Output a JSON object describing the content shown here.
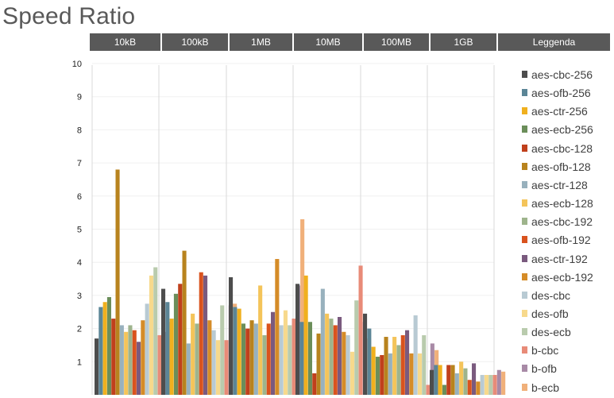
{
  "chart_data": {
    "type": "bar",
    "title": "Speed Ratio",
    "categories": [
      "10kB",
      "100kB",
      "1MB",
      "10MB",
      "100MB",
      "1GB"
    ],
    "legend_header": "Leggenda",
    "legend_position": "right",
    "ylim": [
      0,
      10
    ],
    "y_ticks": [
      "1",
      "2",
      "3",
      "4",
      "5",
      "6",
      "7",
      "8",
      "9",
      "10"
    ],
    "grid": true,
    "series": [
      {
        "name": "aes-cbc-256",
        "color": "#4d4d4d",
        "values": [
          1.7,
          3.2,
          3.55,
          3.35,
          2.45,
          0.75
        ]
      },
      {
        "name": "aes-ofb-256",
        "color": "#5b8596",
        "values": [
          2.65,
          2.8,
          2.65,
          2.2,
          2.0,
          0.9
        ]
      },
      {
        "name": "aes-ctr-256",
        "color": "#f0b01e",
        "values": [
          2.8,
          2.3,
          2.6,
          3.6,
          1.45,
          0.9
        ]
      },
      {
        "name": "aes-ecb-256",
        "color": "#6b8e5a",
        "values": [
          2.95,
          3.05,
          2.15,
          2.2,
          1.15,
          0.3
        ]
      },
      {
        "name": "aes-cbc-128",
        "color": "#c0401c",
        "values": [
          2.3,
          3.35,
          2.0,
          0.65,
          1.2,
          0.9
        ]
      },
      {
        "name": "aes-ofb-128",
        "color": "#b8831e",
        "values": [
          6.8,
          4.35,
          2.25,
          1.85,
          1.75,
          0.9
        ]
      },
      {
        "name": "aes-ctr-128",
        "color": "#98b1bd",
        "values": [
          2.1,
          1.55,
          2.15,
          3.2,
          1.25,
          0.65
        ]
      },
      {
        "name": "aes-ecb-128",
        "color": "#f4c45a",
        "values": [
          1.9,
          2.45,
          3.3,
          2.45,
          1.75,
          1.0
        ]
      },
      {
        "name": "aes-cbc-192",
        "color": "#9eb48c",
        "values": [
          2.1,
          2.15,
          1.8,
          2.3,
          1.5,
          0.8
        ]
      },
      {
        "name": "aes-ofb-192",
        "color": "#d9531e",
        "values": [
          1.95,
          3.7,
          2.15,
          2.1,
          1.8,
          0.45
        ]
      },
      {
        "name": "aes-ctr-192",
        "color": "#7a5a7e",
        "values": [
          1.6,
          3.6,
          2.5,
          2.35,
          1.95,
          0.95
        ]
      },
      {
        "name": "aes-ecb-192",
        "color": "#d58c28",
        "values": [
          2.25,
          2.25,
          4.1,
          1.9,
          1.25,
          0.4
        ]
      },
      {
        "name": "des-cbc",
        "color": "#b8cad3",
        "values": [
          2.75,
          1.95,
          2.1,
          1.8,
          2.4,
          0.6
        ]
      },
      {
        "name": "des-ofb",
        "color": "#f7d98c",
        "values": [
          3.6,
          1.65,
          2.55,
          1.3,
          1.25,
          0.6
        ]
      },
      {
        "name": "des-ecb",
        "color": "#b9cbad",
        "values": [
          3.85,
          2.7,
          2.1,
          2.85,
          1.8,
          0.6
        ]
      },
      {
        "name": "b-cbc",
        "color": "#e88b78",
        "values": [
          1.8,
          1.65,
          2.3,
          3.9,
          0.3,
          0.6
        ]
      },
      {
        "name": "b-ofb",
        "color": "#a88aa6",
        "values": [
          1.9,
          2.7,
          3.3,
          2.2,
          1.55,
          0.75
        ]
      },
      {
        "name": "b-ecb",
        "color": "#f0b07a",
        "values": [
          2.2,
          2.75,
          5.3,
          1.7,
          1.35,
          0.7
        ]
      }
    ]
  }
}
